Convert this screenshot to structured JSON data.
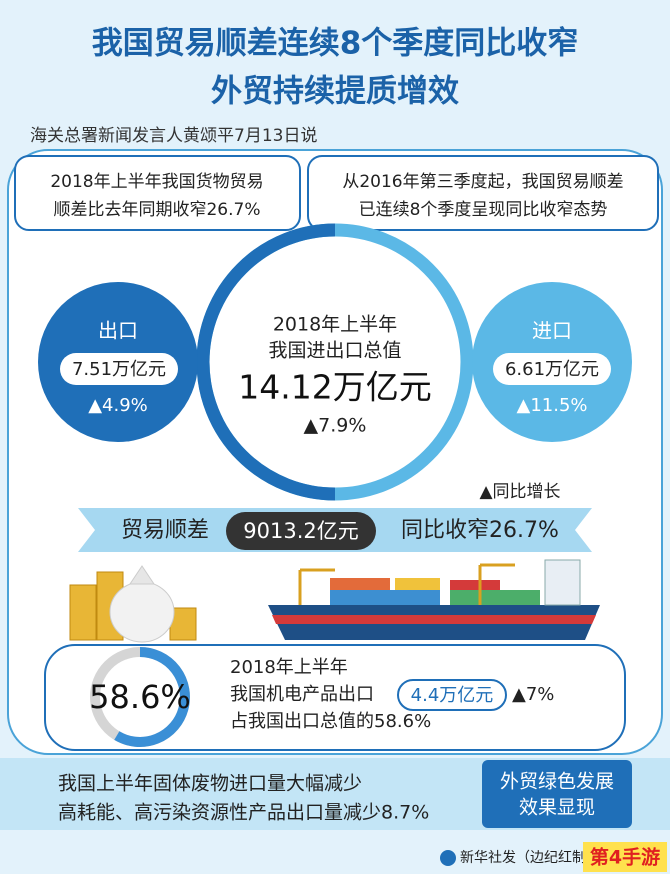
{
  "header": {
    "title": [
      "我国贸易顺差连续8个季度同比收窄",
      "外贸持续提质增效"
    ],
    "source": "海关总署新闻发言人黄颂平7月13日说"
  },
  "notes": [
    {
      "lines": [
        "2018年上半年我国货物贸易",
        "顺差比去年同期收窄26.7%"
      ]
    },
    {
      "lines": [
        "从2016年第三季度起，我国贸易顺差",
        "已连续8个季度呈现同比收窄态势"
      ]
    }
  ],
  "export": {
    "label": "出口",
    "value": "7.51万亿元",
    "growth": "▲4.9%"
  },
  "total": {
    "lines": [
      "2018年上半年",
      "我国进出口总值"
    ],
    "value": "14.12万亿元",
    "growth": "▲7.9%"
  },
  "import": {
    "label": "进口",
    "value": "6.61万亿元",
    "growth": "▲11.5%"
  },
  "legend": "▲同比增长",
  "surplus": {
    "label": "贸易顺差",
    "value": "9013.2亿元",
    "change": "同比收窄26.7%"
  },
  "machinery": {
    "percent": "58.6%",
    "period": "2018年上半年",
    "label": "我国机电产品出口",
    "value": "4.4万亿元",
    "growth": "▲7%",
    "share": "占我国出口总值的58.6%"
  },
  "footer": {
    "lines": [
      "我国上半年固体废物进口量大幅减少",
      "高耗能、高污染资源性产品出口量减少8.7%"
    ],
    "badge": [
      "外贸绿色发展",
      "效果显现"
    ]
  },
  "credit": "新华社发（边纪红制图）",
  "watermark": "第4手游"
}
